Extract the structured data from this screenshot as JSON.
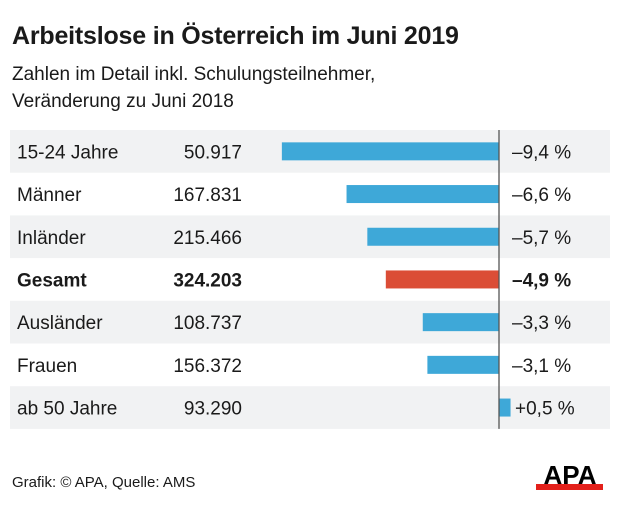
{
  "title": "Arbeitslose in Österreich im Juni 2019",
  "subtitle": [
    "Zahlen im Detail inkl. Schulungsteilnehmer,",
    "Veränderung zu Juni 2018"
  ],
  "footer": "Grafik: © APA, Quelle: AMS",
  "logo_text": "APA",
  "colors": {
    "bar": "#3ea8d8",
    "highlight": "#db4d36",
    "row_shade": "#f1f2f3",
    "axis": "#555555",
    "logo_red": "#e3201b"
  },
  "chart_data": {
    "type": "bar",
    "orientation": "horizontal",
    "categories": [
      "15-24 Jahre",
      "Männer",
      "Inländer",
      "Gesamt",
      "Ausländer",
      "Frauen",
      "ab 50 Jahre"
    ],
    "counts": [
      "50.917",
      "167.831",
      "215.466",
      "324.203",
      "108.737",
      "156.372",
      "93.290"
    ],
    "values": [
      -9.4,
      -6.6,
      -5.7,
      -4.9,
      -3.3,
      -3.1,
      0.5
    ],
    "value_labels": [
      "–9,4 %",
      "–6,6 %",
      "–5,7 %",
      "–4,9 %",
      "–3,3 %",
      "–3,1 %",
      "+0,5 %"
    ],
    "highlight": "Gesamt",
    "unit": "%"
  }
}
